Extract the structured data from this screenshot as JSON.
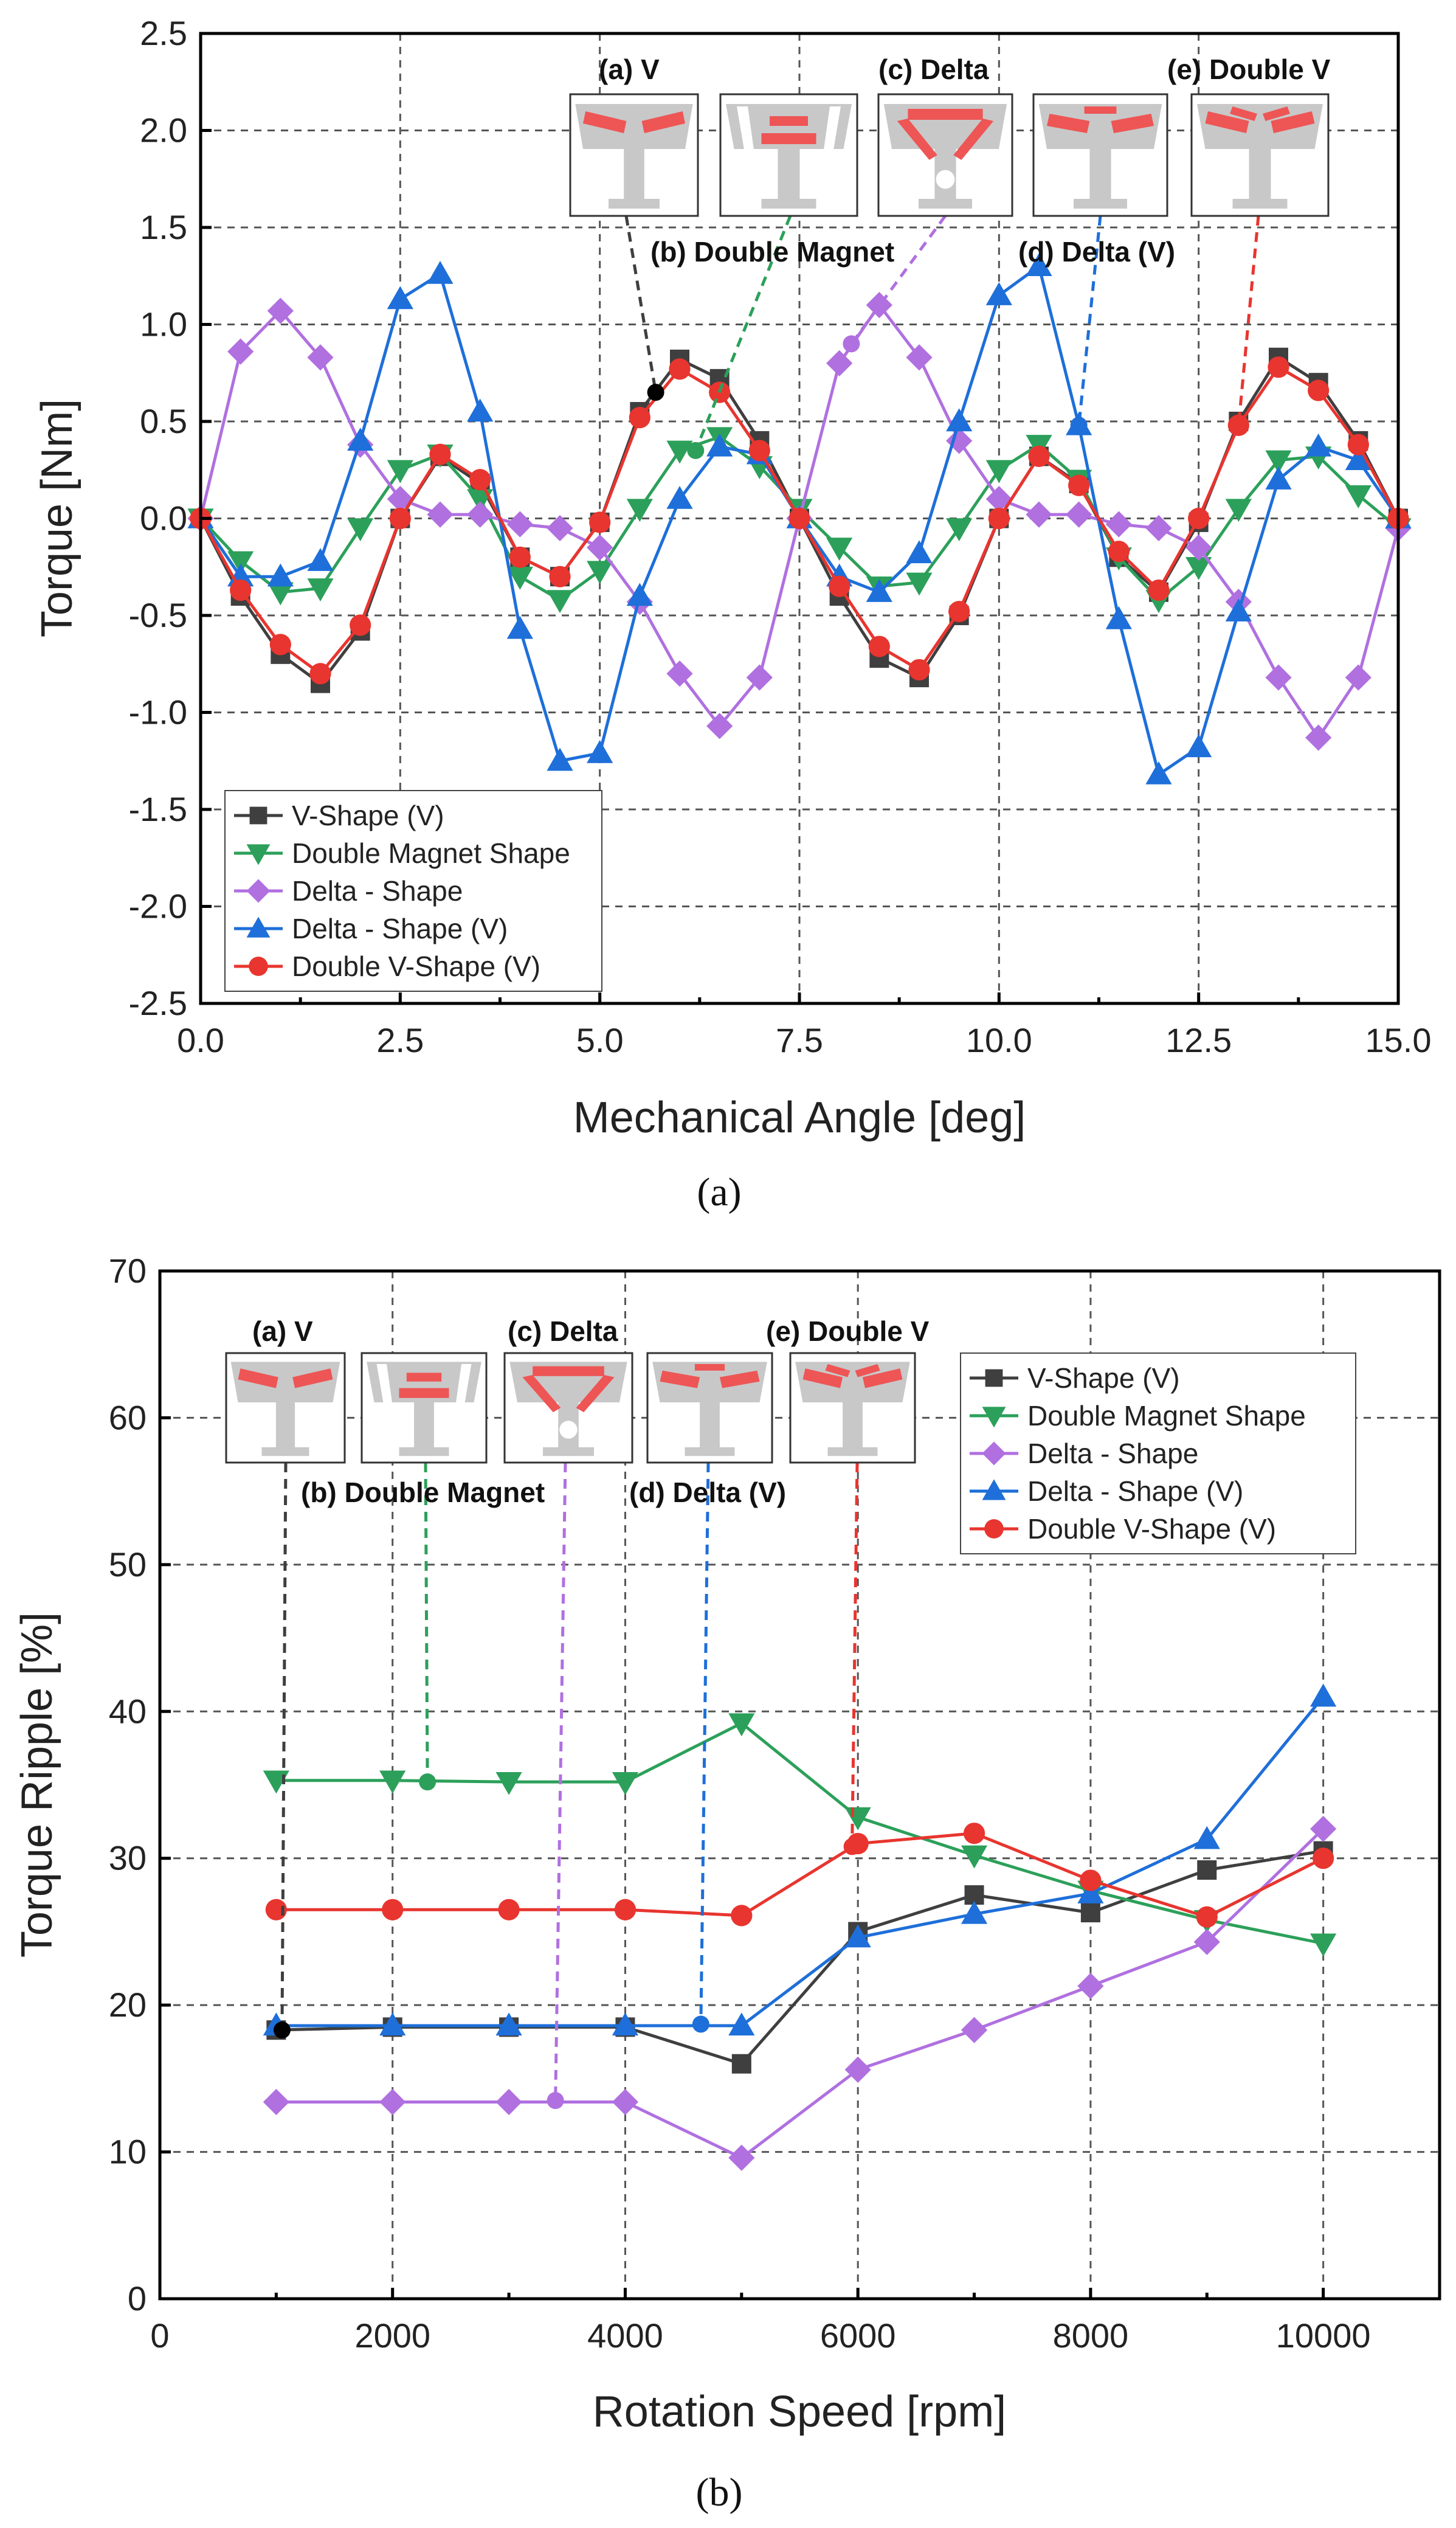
{
  "colors": {
    "V-Shape (V)": "#3f3f3f",
    "Double Magnet Shape": "#2ca05a",
    "Delta - Shape": "#b070e0",
    "Delta - Shape (V)": "#1e6fd9",
    "Double V-Shape (V)": "#e8352f",
    "magnet": "#ee5555",
    "core": "#c8c8c8"
  },
  "markers": {
    "V-Shape (V)": "square",
    "Double Magnet Shape": "triangle-down",
    "Delta - Shape": "diamond",
    "Delta - Shape (V)": "triangle-up",
    "Double V-Shape (V)": "circle"
  },
  "captions": {
    "a": "(a)",
    "b": "(b)"
  },
  "chart_data": [
    {
      "type": "line",
      "xlabel": "Mechanical Angle [deg]",
      "ylabel": "Torque [Nm]",
      "xlim": [
        0,
        15
      ],
      "ylim": [
        -2.5,
        2.5
      ],
      "xticks": [
        "0.0",
        "2.5",
        "5.0",
        "7.5",
        "10.0",
        "12.5",
        "15.0"
      ],
      "yticks": [
        "-2.5",
        "-2.0",
        "-1.5",
        "-1.0",
        "-0.5",
        "0.0",
        "0.5",
        "1.0",
        "1.5",
        "2.0",
        "2.5"
      ],
      "grid": true,
      "legend_position": "bottom-left",
      "x": [
        0,
        0.5,
        1,
        1.5,
        2,
        2.5,
        3,
        3.5,
        4,
        4.5,
        5,
        5.5,
        6,
        6.5,
        7,
        7.5,
        8,
        8.5,
        9,
        9.5,
        10,
        10.5,
        11,
        11.5,
        12,
        12.5,
        13,
        13.5,
        14,
        14.5,
        15
      ],
      "series": [
        {
          "name": "V-Shape (V)",
          "values": [
            0,
            -0.4,
            -0.7,
            -0.85,
            -0.58,
            0,
            0.32,
            0.18,
            -0.2,
            -0.3,
            -0.02,
            0.55,
            0.82,
            0.72,
            0.4,
            0,
            -0.4,
            -0.72,
            -0.82,
            -0.5,
            0,
            0.32,
            0.18,
            -0.2,
            -0.38,
            -0.02,
            0.5,
            0.83,
            0.7,
            0.4,
            0
          ]
        },
        {
          "name": "Double Magnet Shape",
          "values": [
            0,
            -0.22,
            -0.38,
            -0.36,
            -0.05,
            0.25,
            0.33,
            0.1,
            -0.3,
            -0.42,
            -0.27,
            0.05,
            0.35,
            0.42,
            0.27,
            0.05,
            -0.15,
            -0.35,
            -0.33,
            -0.05,
            0.25,
            0.38,
            0.2,
            -0.2,
            -0.42,
            -0.25,
            0.05,
            0.3,
            0.32,
            0.12,
            -0.05
          ]
        },
        {
          "name": "Delta - Shape",
          "values": [
            0,
            0.86,
            1.07,
            0.83,
            0.38,
            0.1,
            0.02,
            0.02,
            -0.03,
            -0.05,
            -0.15,
            -0.43,
            -0.8,
            -1.07,
            -0.82,
            0,
            0.8,
            1.1,
            0.83,
            0.4,
            0.1,
            0.02,
            0.02,
            -0.03,
            -0.05,
            -0.15,
            -0.43,
            -0.82,
            -1.13,
            -0.82,
            -0.05
          ]
        },
        {
          "name": "Delta - Shape (V)",
          "values": [
            0,
            -0.3,
            -0.3,
            -0.22,
            0.4,
            1.13,
            1.26,
            0.55,
            -0.57,
            -1.25,
            -1.21,
            -0.4,
            0.1,
            0.37,
            0.33,
            0,
            -0.3,
            -0.38,
            -0.18,
            0.5,
            1.15,
            1.3,
            0.48,
            -0.52,
            -1.32,
            -1.18,
            -0.48,
            0.2,
            0.37,
            0.3,
            0
          ]
        },
        {
          "name": "Double V-Shape (V)",
          "values": [
            0,
            -0.37,
            -0.65,
            -0.8,
            -0.55,
            0,
            0.33,
            0.2,
            -0.2,
            -0.3,
            -0.02,
            0.52,
            0.77,
            0.65,
            0.35,
            0,
            -0.35,
            -0.66,
            -0.78,
            -0.48,
            0,
            0.32,
            0.17,
            -0.17,
            -0.37,
            0,
            0.48,
            0.78,
            0.66,
            0.38,
            0
          ]
        }
      ],
      "annotations": [
        {
          "label": "(a) V",
          "x": 5.7,
          "y": 0.65,
          "series": "V-Shape (V)"
        },
        {
          "label": "(b) Double Magnet",
          "x": 6.2,
          "y": 0.35,
          "series": "Double Magnet Shape"
        },
        {
          "label": "(c) Delta",
          "x": 8.15,
          "y": 0.9,
          "series": "Delta - Shape"
        },
        {
          "label": "(d) Delta (V)",
          "x": 11,
          "y": 0.48,
          "series": "Delta - Shape (V)"
        },
        {
          "label": "(e) Double V",
          "x": 13,
          "y": 0.48,
          "series": "Double V-Shape (V)"
        }
      ]
    },
    {
      "type": "line",
      "xlabel": "Rotation Speed [rpm]",
      "ylabel": "Torque Ripple [%]",
      "xlim": [
        0,
        11000
      ],
      "ylim": [
        0,
        70
      ],
      "xticks": [
        "0",
        "2000",
        "4000",
        "6000",
        "8000",
        "10000"
      ],
      "yticks": [
        "0",
        "10",
        "20",
        "30",
        "40",
        "50",
        "60",
        "70"
      ],
      "grid": true,
      "legend_position": "top-right",
      "x": [
        1000,
        2000,
        3000,
        4000,
        5000,
        6000,
        7000,
        8000,
        9000,
        10000
      ],
      "series": [
        {
          "name": "V-Shape (V)",
          "values": [
            18.3,
            18.5,
            18.5,
            18.5,
            16,
            25,
            27.5,
            26.3,
            29.2,
            30.5
          ]
        },
        {
          "name": "Double Magnet Shape",
          "values": [
            35.3,
            35.3,
            35.2,
            35.2,
            39.2,
            32.8,
            30.2,
            27.8,
            25.8,
            24.2
          ]
        },
        {
          "name": "Delta - Shape",
          "values": [
            13.4,
            13.4,
            13.4,
            13.4,
            9.6,
            15.6,
            18.3,
            21.3,
            24.3,
            32
          ]
        },
        {
          "name": "Delta - Shape (V)",
          "values": [
            18.6,
            18.6,
            18.6,
            18.6,
            18.6,
            24.6,
            26.2,
            27.6,
            31.3,
            41
          ]
        },
        {
          "name": "Double V-Shape (V)",
          "values": [
            26.5,
            26.5,
            26.5,
            26.5,
            26.1,
            31,
            31.7,
            28.5,
            26,
            30
          ]
        }
      ],
      "annotations": [
        {
          "label": "(a) V",
          "x": 1050,
          "y": 18.3,
          "series": "V-Shape (V)"
        },
        {
          "label": "(b) Double Magnet",
          "x": 2300,
          "y": 35.2,
          "series": "Double Magnet Shape"
        },
        {
          "label": "(c) Delta",
          "x": 3400,
          "y": 13.5,
          "series": "Delta - Shape"
        },
        {
          "label": "(d) Delta (V)",
          "x": 4650,
          "y": 18.7,
          "series": "Delta - Shape (V)"
        },
        {
          "label": "(e) Double V",
          "x": 5950,
          "y": 30.8,
          "series": "Double V-Shape (V)"
        }
      ]
    }
  ]
}
